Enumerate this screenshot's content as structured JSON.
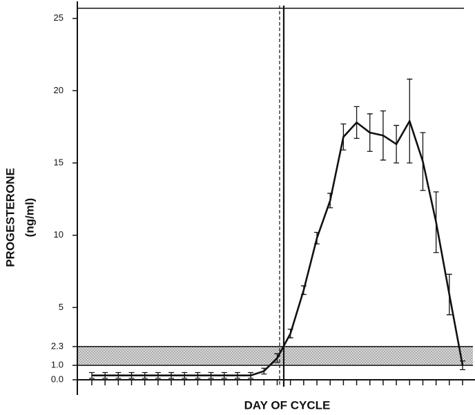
{
  "chart_data": {
    "type": "line",
    "xlabel": "DAY OF CYCLE",
    "ylabel": [
      "PROGESTERONE",
      "(ng/ml)"
    ],
    "categories": [
      null,
      null,
      null,
      null,
      null,
      null,
      null,
      null,
      null,
      null,
      null,
      null,
      null,
      null,
      null,
      null,
      null,
      null,
      null,
      null,
      null,
      null,
      null,
      null,
      null,
      null,
      null,
      null,
      null
    ],
    "series": [
      {
        "color": "#111111",
        "values": [
          0.3,
          0.3,
          0.3,
          0.3,
          0.3,
          0.3,
          0.3,
          0.3,
          0.3,
          0.3,
          0.3,
          0.3,
          0.3,
          0.6,
          1.5,
          3.2,
          6.2,
          9.8,
          12.4,
          16.8,
          17.8,
          17.1,
          16.9,
          16.3,
          17.9,
          15.1,
          10.9,
          5.9,
          1.0
        ],
        "errors": [
          0.2,
          0.2,
          0.2,
          0.2,
          0.2,
          0.2,
          0.2,
          0.2,
          0.2,
          0.2,
          0.2,
          0.2,
          0.2,
          0.2,
          0.3,
          0.3,
          0.3,
          0.4,
          0.5,
          0.9,
          1.1,
          1.3,
          1.7,
          1.3,
          2.9,
          2.0,
          2.1,
          1.4,
          0.3
        ]
      }
    ],
    "ylim": [
      0,
      25.7
    ],
    "yticks": [
      {
        "value": 0,
        "label": "0.0"
      },
      {
        "value": 1,
        "label": "1.0"
      },
      2.3,
      5,
      10,
      15,
      20,
      25
    ]
  }
}
